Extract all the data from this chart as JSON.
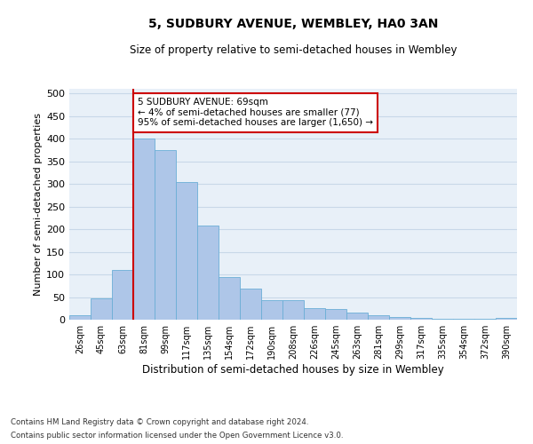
{
  "title": "5, SUDBURY AVENUE, WEMBLEY, HA0 3AN",
  "subtitle": "Size of property relative to semi-detached houses in Wembley",
  "xlabel": "Distribution of semi-detached houses by size in Wembley",
  "ylabel": "Number of semi-detached properties",
  "categories": [
    "26sqm",
    "45sqm",
    "63sqm",
    "81sqm",
    "99sqm",
    "117sqm",
    "135sqm",
    "154sqm",
    "172sqm",
    "190sqm",
    "208sqm",
    "226sqm",
    "245sqm",
    "263sqm",
    "281sqm",
    "299sqm",
    "317sqm",
    "335sqm",
    "354sqm",
    "372sqm",
    "390sqm"
  ],
  "values": [
    10,
    47,
    110,
    400,
    375,
    305,
    207,
    95,
    68,
    43,
    43,
    25,
    24,
    16,
    9,
    5,
    3,
    2,
    1,
    1,
    3
  ],
  "bar_color": "#aec6e8",
  "bar_edge_color": "#6baed6",
  "grid_color": "#c8d8e8",
  "bg_color": "#e8f0f8",
  "property_line_x": 2.5,
  "property_line_color": "#cc0000",
  "annotation_text": "5 SUDBURY AVENUE: 69sqm\n← 4% of semi-detached houses are smaller (77)\n95% of semi-detached houses are larger (1,650) →",
  "annotation_box_color": "#cc0000",
  "footer1": "Contains HM Land Registry data © Crown copyright and database right 2024.",
  "footer2": "Contains public sector information licensed under the Open Government Licence v3.0.",
  "ylim": [
    0,
    510
  ],
  "yticks": [
    0,
    50,
    100,
    150,
    200,
    250,
    300,
    350,
    400,
    450,
    500
  ]
}
